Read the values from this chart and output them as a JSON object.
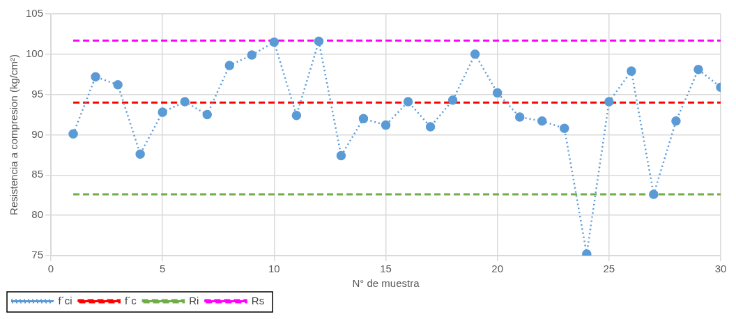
{
  "chart_data": {
    "type": "line",
    "xlabel": "N° de muestra",
    "ylabel": "Resistencia a compresion (kg/cm²)",
    "x": [
      1,
      2,
      3,
      4,
      5,
      6,
      7,
      8,
      9,
      10,
      11,
      12,
      13,
      14,
      15,
      16,
      17,
      18,
      19,
      20,
      21,
      22,
      23,
      24,
      25,
      26,
      27,
      28,
      29,
      30
    ],
    "series": [
      {
        "name": "f´ci",
        "color": "#5b9bd5",
        "marker": "circle",
        "line_style": "dotted",
        "values": [
          90.1,
          97.2,
          96.2,
          87.6,
          92.8,
          94.1,
          92.5,
          98.6,
          99.9,
          101.5,
          92.4,
          101.6,
          87.4,
          92.0,
          91.2,
          94.1,
          91.0,
          94.3,
          100.0,
          95.2,
          92.2,
          91.7,
          90.8,
          75.2,
          94.1,
          97.9,
          82.6,
          91.7,
          98.1,
          95.9
        ]
      }
    ],
    "ref_lines": [
      {
        "axis": "y",
        "value": 94.0,
        "label": "f´c",
        "color": "#ff0000",
        "line_style": "dashed"
      },
      {
        "axis": "y",
        "value": 82.6,
        "label": "Ri",
        "color": "#70ad47",
        "line_style": "dashed"
      },
      {
        "axis": "y",
        "value": 101.7,
        "label": "Rs",
        "color": "#ff00ff",
        "line_style": "dashed"
      }
    ],
    "xlim": [
      0,
      30
    ],
    "xticks": [
      0,
      5,
      10,
      15,
      20,
      25,
      30
    ],
    "ylim": [
      75,
      105
    ],
    "yticks": [
      75,
      80,
      85,
      90,
      95,
      100,
      105
    ],
    "grid": true,
    "legend": "bottom left"
  }
}
